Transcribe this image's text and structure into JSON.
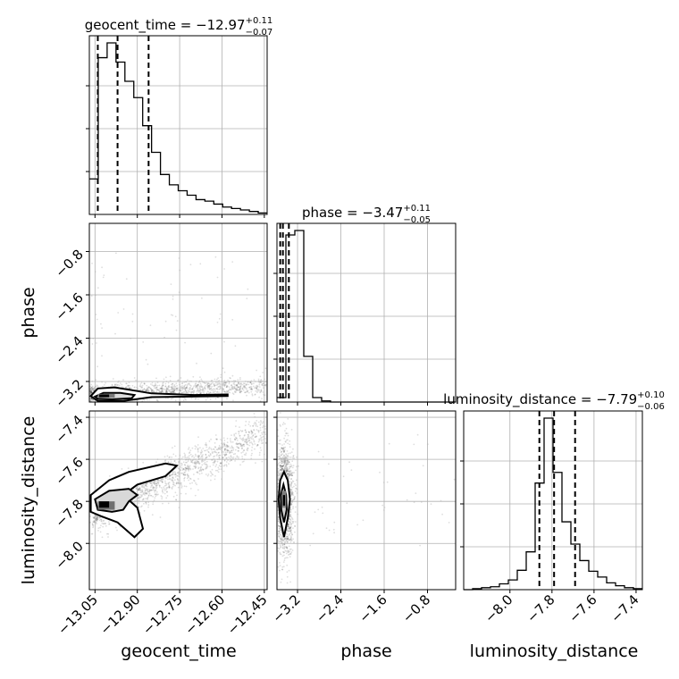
{
  "chart_data": {
    "type": "corner",
    "parameters": [
      "geocent_time",
      "phase",
      "luminosity_distance"
    ],
    "titles": [
      {
        "param": "geocent_time",
        "prefix": "geocent_time = ",
        "value": "−12.97",
        "upper": "+0.11",
        "lower": "−0.07"
      },
      {
        "param": "phase",
        "prefix": "phase = ",
        "value": "−3.47",
        "upper": "+0.11",
        "lower": "−0.05"
      },
      {
        "param": "luminosity_distance",
        "prefix": "luminosity_distance = ",
        "value": "−7.79",
        "upper": "+0.10",
        "lower": "−0.06"
      }
    ],
    "axis_labels": {
      "x": [
        "geocent_time",
        "phase",
        "luminosity_distance"
      ],
      "y": [
        "phase",
        "luminosity_distance"
      ]
    },
    "ranges": {
      "geocent_time": [
        -13.07,
        -12.44
      ],
      "phase": [
        -3.58,
        -0.28
      ],
      "luminosity_distance": [
        -8.22,
        -7.37
      ]
    },
    "ticks": {
      "geocent_time": {
        "values": [
          -13.05,
          -12.9,
          -12.75,
          -12.6,
          -12.45
        ],
        "labels": [
          "−13.05",
          "−12.90",
          "−12.75",
          "−12.60",
          "−12.45"
        ]
      },
      "phase": {
        "values": [
          -3.2,
          -2.4,
          -1.6,
          -0.8
        ],
        "labels": [
          "−3.2",
          "−2.4",
          "−1.6",
          "−0.8"
        ]
      },
      "luminosity_distance": {
        "values": [
          -8.0,
          -7.8,
          -7.6,
          -7.4
        ],
        "labels": [
          "−8.0",
          "−7.8",
          "−7.6",
          "−7.4"
        ]
      }
    },
    "quantiles": {
      "geocent_time": [
        -13.04,
        -12.97,
        -12.86
      ],
      "phase": [
        -3.52,
        -3.47,
        -3.36
      ],
      "luminosity_distance": [
        -7.86,
        -7.79,
        -7.69
      ]
    },
    "histograms": {
      "geocent_time": {
        "bin_edges_start": -13.07,
        "bin_width": 0.0315,
        "counts": [
          24,
          106,
          116,
          103,
          90,
          79,
          60,
          42,
          27,
          20,
          16,
          13,
          10,
          9,
          7,
          5,
          4,
          3,
          2,
          1
        ]
      },
      "phase": {
        "bin_edges_start": -3.58,
        "bin_width": 0.165,
        "counts": [
          4,
          150,
          154,
          41,
          4,
          1,
          0,
          0,
          0,
          0,
          0,
          0,
          0,
          0,
          0,
          0,
          0,
          0,
          0,
          0
        ]
      },
      "luminosity_distance": {
        "bin_edges_start": -8.22,
        "bin_width": 0.0425,
        "counts": [
          0,
          1,
          2,
          3,
          6,
          10,
          20,
          39,
          110,
          177,
          121,
          70,
          47,
          30,
          19,
          13,
          7,
          4,
          2,
          1
        ]
      }
    },
    "grid": true
  }
}
